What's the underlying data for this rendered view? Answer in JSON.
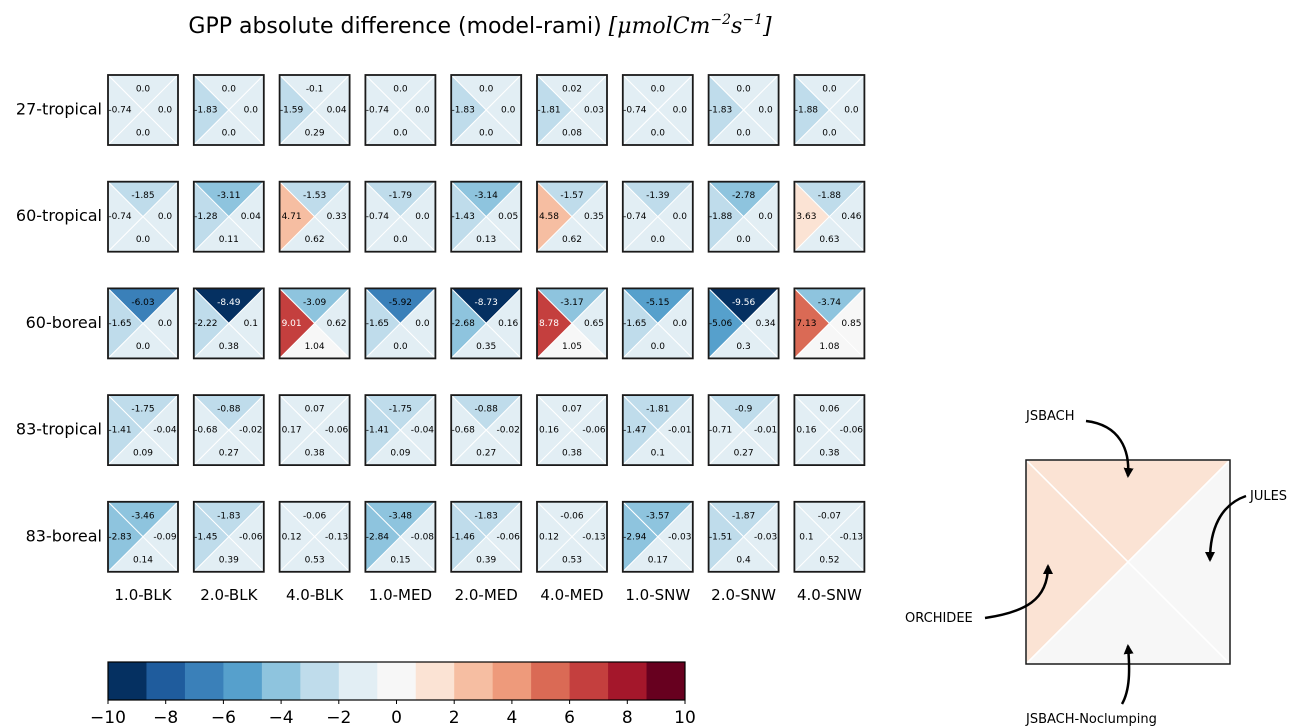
{
  "chart_data": {
    "type": "heatmap",
    "title": {
      "main": "GPP absolute difference (model-rami) ",
      "units_open": "[",
      "units_base": "μmolCm",
      "units_exp1": "−2",
      "units_mid": "s",
      "units_exp2": "−1",
      "units_close": "]"
    },
    "rows": [
      "27-tropical",
      "60-tropical",
      "60-boreal",
      "83-tropical",
      "83-boreal"
    ],
    "columns": [
      "1.0-BLK",
      "2.0-BLK",
      "4.0-BLK",
      "1.0-MED",
      "2.0-MED",
      "4.0-MED",
      "1.0-SNW",
      "2.0-SNW",
      "4.0-SNW"
    ],
    "triangle_order": [
      "top",
      "left",
      "right",
      "bottom"
    ],
    "values": [
      [
        [
          0.0,
          -0.74,
          0.0,
          0.0
        ],
        [
          0.0,
          -1.83,
          0.0,
          0.0
        ],
        [
          -0.1,
          -1.59,
          0.04,
          0.29
        ],
        [
          0.0,
          -0.74,
          0.0,
          0.0
        ],
        [
          0.0,
          -1.83,
          0.0,
          0.0
        ],
        [
          0.02,
          -1.81,
          0.03,
          0.08
        ],
        [
          0.0,
          -0.74,
          0.0,
          0.0
        ],
        [
          0.0,
          -1.83,
          0.0,
          0.0
        ],
        [
          0.0,
          -1.88,
          0.0,
          0.0
        ]
      ],
      [
        [
          -1.85,
          -0.74,
          0.0,
          0.0
        ],
        [
          -3.11,
          -1.28,
          0.04,
          0.11
        ],
        [
          -1.53,
          4.71,
          0.33,
          0.62
        ],
        [
          -1.79,
          -0.74,
          0.0,
          0.0
        ],
        [
          -3.14,
          -1.43,
          0.05,
          0.13
        ],
        [
          -1.57,
          4.58,
          0.35,
          0.62
        ],
        [
          -1.39,
          -0.74,
          0.0,
          0.0
        ],
        [
          -2.78,
          -1.88,
          0.0,
          0.0
        ],
        [
          -1.88,
          3.63,
          0.46,
          0.63
        ]
      ],
      [
        [
          -6.03,
          -1.65,
          0.0,
          0.0
        ],
        [
          -8.49,
          -2.22,
          0.1,
          0.38
        ],
        [
          -3.09,
          9.01,
          0.62,
          1.04
        ],
        [
          -5.92,
          -1.65,
          0.0,
          0.0
        ],
        [
          -8.73,
          -2.68,
          0.16,
          0.35
        ],
        [
          -3.17,
          8.78,
          0.65,
          1.05
        ],
        [
          -5.15,
          -1.65,
          0.0,
          0.0
        ],
        [
          -9.56,
          -5.06,
          0.34,
          0.3
        ],
        [
          -3.74,
          7.13,
          0.85,
          1.08
        ]
      ],
      [
        [
          -1.75,
          -1.41,
          -0.04,
          0.09
        ],
        [
          -0.88,
          -0.68,
          -0.02,
          0.27
        ],
        [
          0.07,
          0.17,
          -0.06,
          0.38
        ],
        [
          -1.75,
          -1.41,
          -0.04,
          0.09
        ],
        [
          -0.88,
          -0.68,
          -0.02,
          0.27
        ],
        [
          0.07,
          0.16,
          -0.06,
          0.38
        ],
        [
          -1.81,
          -1.47,
          -0.01,
          0.1
        ],
        [
          -0.9,
          -0.71,
          -0.01,
          0.27
        ],
        [
          0.06,
          0.16,
          -0.06,
          0.38
        ]
      ],
      [
        [
          -3.46,
          -2.83,
          -0.09,
          0.14
        ],
        [
          -1.83,
          -1.45,
          -0.06,
          0.39
        ],
        [
          -0.06,
          0.12,
          -0.13,
          0.53
        ],
        [
          -3.48,
          -2.84,
          -0.08,
          0.15
        ],
        [
          -1.83,
          -1.46,
          -0.06,
          0.39
        ],
        [
          -0.06,
          0.12,
          -0.13,
          0.53
        ],
        [
          -3.57,
          -2.94,
          -0.03,
          0.17
        ],
        [
          -1.87,
          -1.51,
          -0.03,
          0.4
        ],
        [
          -0.07,
          0.1,
          -0.13,
          0.52
        ]
      ]
    ],
    "colorbar": {
      "vmin": -10,
      "vmax": 10,
      "bin_width": 1.5384615,
      "colors": [
        "#053061",
        "#1f5c9d",
        "#3a80b9",
        "#56a0cc",
        "#8ec4de",
        "#bfdceb",
        "#e2eef4",
        "#f7f7f7",
        "#fbe3d4",
        "#f6bea2",
        "#ee9a7b",
        "#da6a55",
        "#c43f3e",
        "#a4172b",
        "#67001f"
      ],
      "ticks": [
        -10,
        -8,
        -6,
        -4,
        -2,
        0,
        2,
        4,
        6,
        8,
        10
      ],
      "tick_labels": [
        "−10",
        "−8",
        "−6",
        "−4",
        "−2",
        "0",
        "2",
        "4",
        "6",
        "8",
        "10"
      ]
    },
    "legend_key": {
      "top": "JSBACH",
      "right": "JULES",
      "left": "ORCHIDEE",
      "bottom": "JSBACH-Noclumping",
      "fill_colors": {
        "top": "#fbe3d4",
        "left": "#fbe3d4",
        "right": "#f7f7f7",
        "bottom": "#f7f7f7"
      }
    }
  }
}
